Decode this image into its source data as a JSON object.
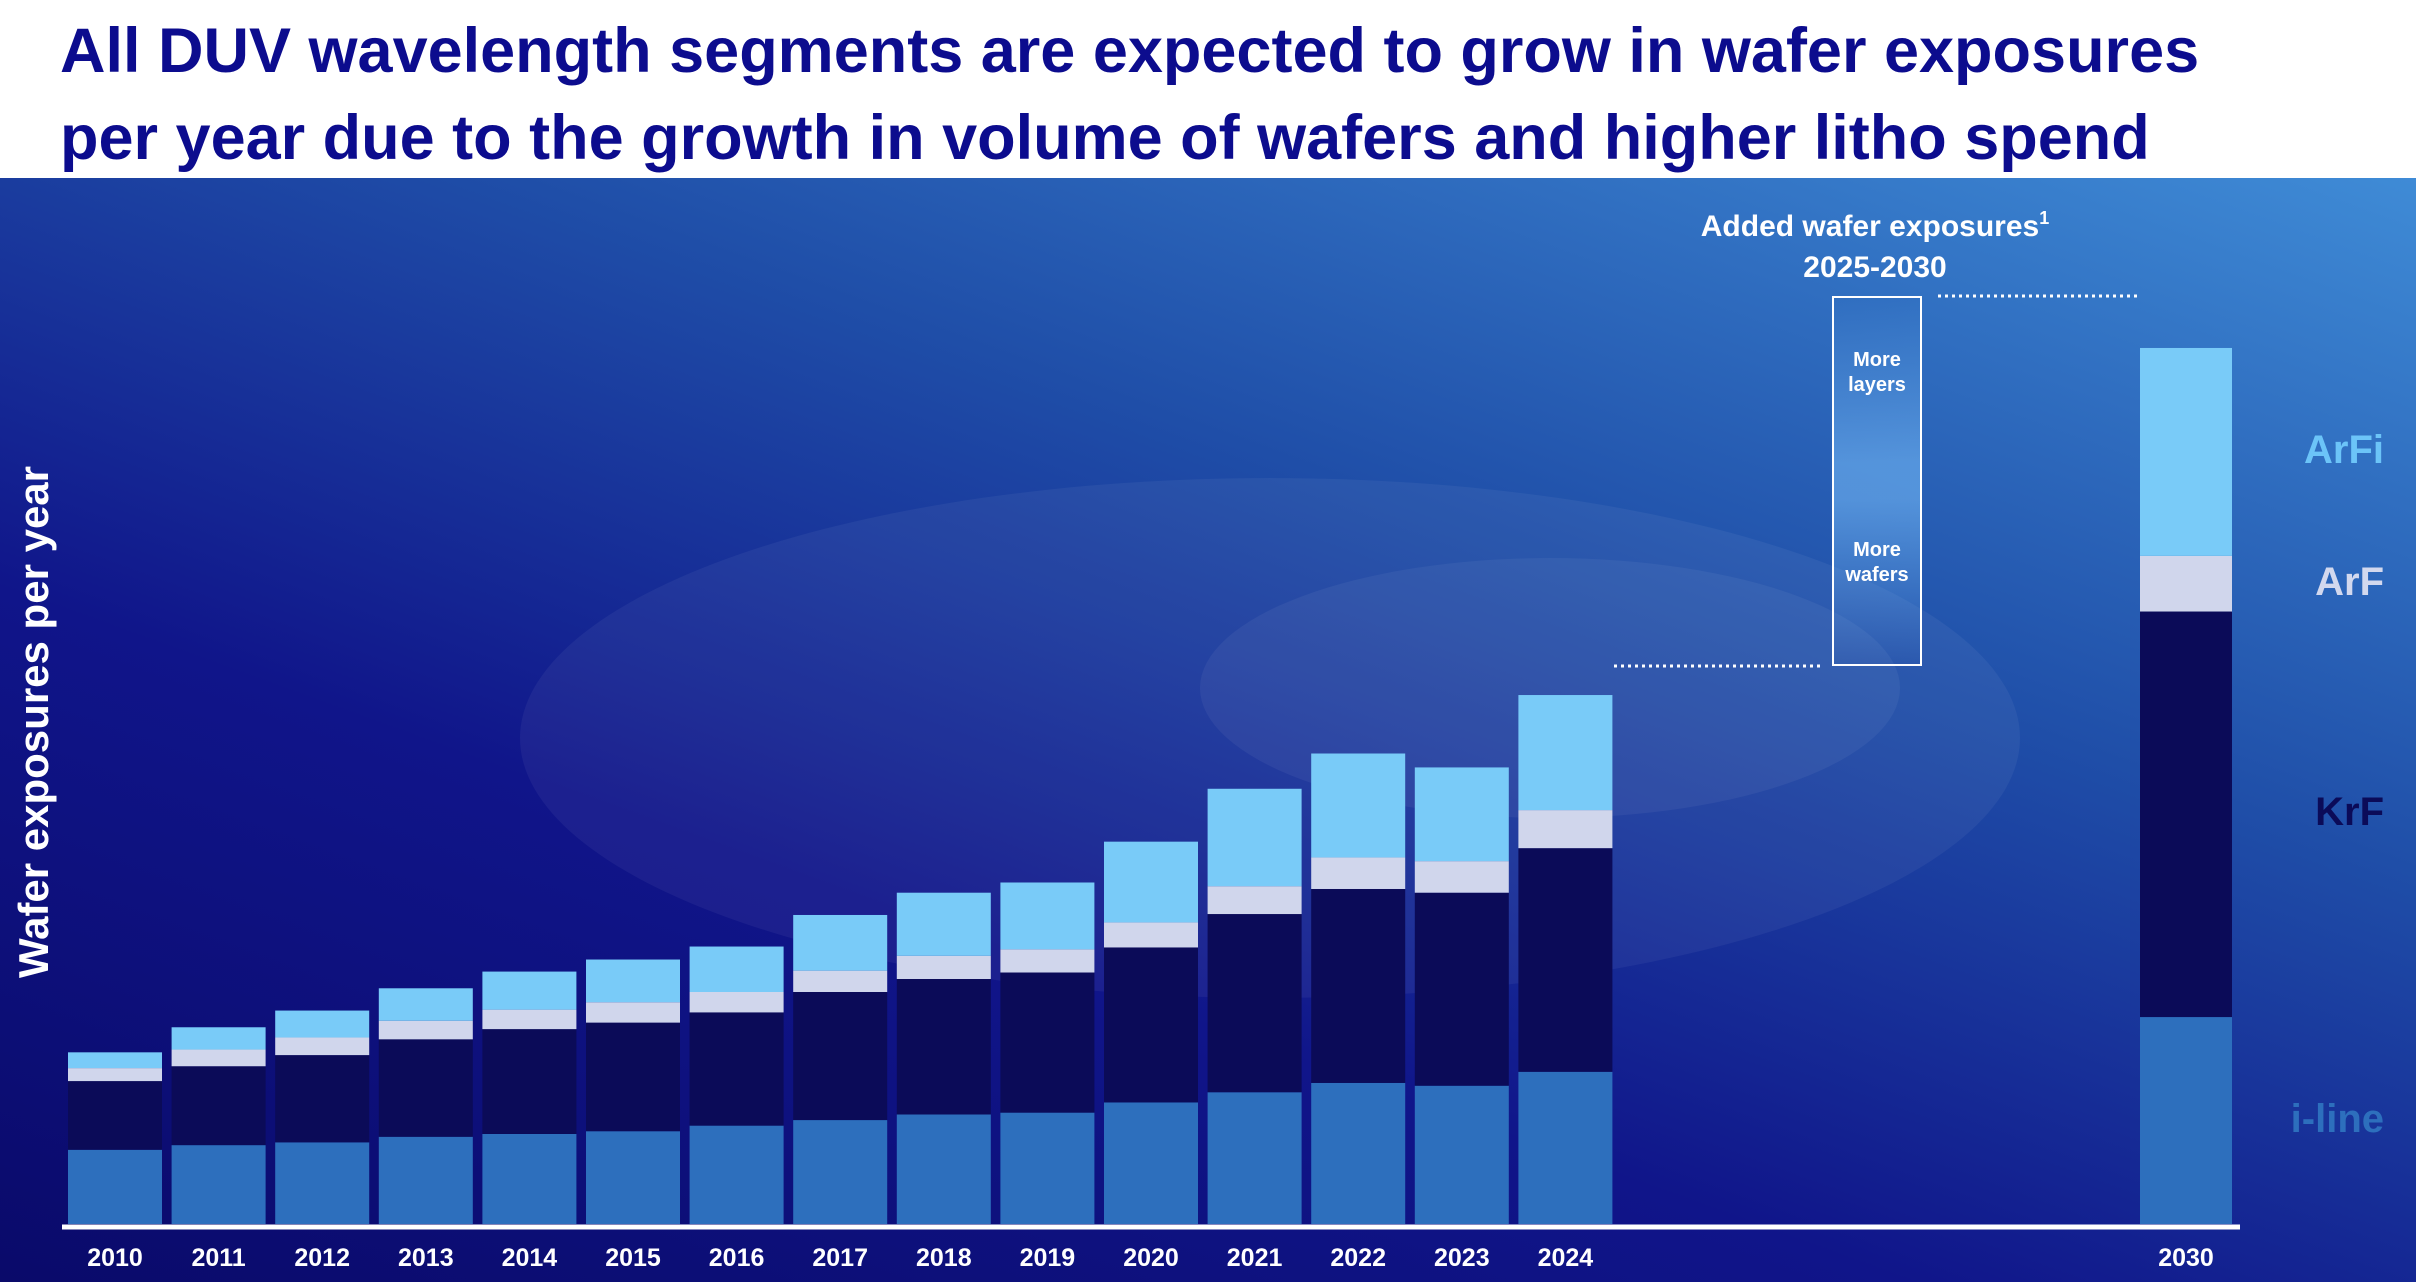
{
  "title": {
    "line1": "All DUV wavelength segments are expected to grow in wafer exposures",
    "line2": "per year due to the growth in volume of wafers and higher litho spend"
  },
  "y_axis_label": "Wafer exposures per year",
  "annotation": {
    "heading": "Added wafer exposures",
    "footnote_mark": "1",
    "period": "2025-2030",
    "top_label": "More layers",
    "bottom_label": "More wafers"
  },
  "colors": {
    "i-line": "#2d6fbd",
    "KrF": "#0b0b58",
    "ArF": "#d0d6ec",
    "ArFi": "#79cbf8"
  },
  "segment_labels": [
    {
      "name": "ArFi",
      "color": "#6cc4f8"
    },
    {
      "name": "ArF",
      "color": "#d2d8ee"
    },
    {
      "name": "KrF",
      "color": "#0b0b58"
    },
    {
      "name": "i-line",
      "color": "#2d6fbd"
    }
  ],
  "chart_data": {
    "type": "bar",
    "stacked": true,
    "categories": [
      "2010",
      "2011",
      "2012",
      "2013",
      "2014",
      "2015",
      "2016",
      "2017",
      "2018",
      "2019",
      "2020",
      "2021",
      "2022",
      "2023",
      "2024",
      "2030"
    ],
    "series": [
      {
        "name": "i-line",
        "values": [
          8.0,
          8.5,
          8.8,
          9.4,
          9.7,
          10.0,
          10.6,
          11.2,
          11.8,
          12.0,
          13.1,
          14.2,
          15.2,
          14.9,
          16.4,
          22.3
        ]
      },
      {
        "name": "KrF",
        "values": [
          7.4,
          8.5,
          9.4,
          10.5,
          11.3,
          11.7,
          12.2,
          13.8,
          14.6,
          15.1,
          16.7,
          19.2,
          20.9,
          20.8,
          24.1,
          43.7
        ]
      },
      {
        "name": "ArF",
        "values": [
          1.4,
          1.8,
          1.9,
          2.0,
          2.1,
          2.2,
          2.2,
          2.3,
          2.5,
          2.5,
          2.7,
          3.0,
          3.4,
          3.4,
          4.1,
          6.0
        ]
      },
      {
        "name": "ArFi",
        "values": [
          1.7,
          2.4,
          2.9,
          3.5,
          4.1,
          4.6,
          4.9,
          6.0,
          6.8,
          7.2,
          8.7,
          10.5,
          11.2,
          10.1,
          12.4,
          22.4
        ]
      }
    ],
    "ylim": [
      0,
      100
    ],
    "grid": false,
    "legend": "right"
  }
}
